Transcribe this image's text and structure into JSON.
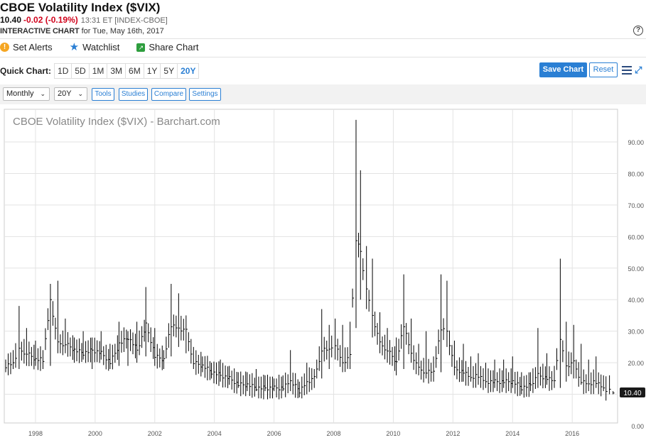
{
  "header": {
    "title": "CBOE Volatility Index ($VIX)",
    "last": "10.40",
    "change": "-0.02 (-0.19%)",
    "meta": "13:31 ET [INDEX-CBOE]",
    "chart_label": "INTERACTIVE CHART",
    "chart_date": "for Tue, May 16th, 2017",
    "help": "?"
  },
  "actions": {
    "alerts": "Set Alerts",
    "watchlist": "Watchlist",
    "share": "Share Chart"
  },
  "quick": {
    "label": "Quick Chart:",
    "timeframes": [
      "1D",
      "5D",
      "1M",
      "3M",
      "6M",
      "1Y",
      "5Y",
      "20Y"
    ],
    "active": "20Y"
  },
  "buttons": {
    "save": "Save Chart",
    "reset": "Reset"
  },
  "toolbar": {
    "interval": "Monthly",
    "period": "20Y",
    "tools": "Tools",
    "studies": "Studies",
    "compare": "Compare",
    "settings": "Settings"
  },
  "colors": {
    "accent": "#2a7fd4",
    "down": "#d0021b",
    "bars": "#000000",
    "grid": "#dddddd"
  },
  "chart_data": {
    "type": "ohlc",
    "title": "CBOE Volatility Index ($VIX) - Barchart.com",
    "interval": "monthly",
    "x_ticks": [
      "1998",
      "2000",
      "2002",
      "2004",
      "2006",
      "2008",
      "2010",
      "2012",
      "2014",
      "2016"
    ],
    "y_ticks": [
      "0.00",
      "10.00",
      "20.00",
      "30.00",
      "40.00",
      "50.00",
      "60.00",
      "70.00",
      "80.00",
      "90.00"
    ],
    "ylim": [
      0,
      95
    ],
    "xlim": [
      1997.0,
      2017.45
    ],
    "last_value_tag": "10.40",
    "series": [
      {
        "x": 1997.0,
        "high": 21,
        "low": 17,
        "close": 19
      },
      {
        "x": 1997.25,
        "high": 24,
        "low": 18,
        "close": 20
      },
      {
        "x": 1997.45,
        "high": 38,
        "low": 18,
        "close": 24
      },
      {
        "x": 1997.7,
        "high": 31,
        "low": 19,
        "close": 23
      },
      {
        "x": 1998.0,
        "high": 27,
        "low": 19,
        "close": 21
      },
      {
        "x": 1998.25,
        "high": 24,
        "low": 18,
        "close": 21
      },
      {
        "x": 1998.5,
        "high": 45,
        "low": 19,
        "close": 40
      },
      {
        "x": 1998.75,
        "high": 46,
        "low": 23,
        "close": 26
      },
      {
        "x": 1999.0,
        "high": 34,
        "low": 23,
        "close": 26
      },
      {
        "x": 1999.3,
        "high": 28,
        "low": 20,
        "close": 24
      },
      {
        "x": 1999.6,
        "high": 30,
        "low": 21,
        "close": 23
      },
      {
        "x": 1999.9,
        "high": 28,
        "low": 18,
        "close": 24
      },
      {
        "x": 2000.2,
        "high": 30,
        "low": 21,
        "close": 23
      },
      {
        "x": 2000.5,
        "high": 26,
        "low": 18,
        "close": 20
      },
      {
        "x": 2000.8,
        "high": 33,
        "low": 19,
        "close": 26
      },
      {
        "x": 2001.1,
        "high": 30,
        "low": 19,
        "close": 28
      },
      {
        "x": 2001.4,
        "high": 33,
        "low": 20,
        "close": 24
      },
      {
        "x": 2001.7,
        "high": 44,
        "low": 22,
        "close": 32
      },
      {
        "x": 2002.0,
        "high": 31,
        "low": 19,
        "close": 22
      },
      {
        "x": 2002.3,
        "high": 24,
        "low": 18,
        "close": 21
      },
      {
        "x": 2002.55,
        "high": 45,
        "low": 22,
        "close": 32
      },
      {
        "x": 2002.8,
        "high": 42,
        "low": 25,
        "close": 31
      },
      {
        "x": 2003.05,
        "high": 35,
        "low": 23,
        "close": 30
      },
      {
        "x": 2003.3,
        "high": 25,
        "low": 18,
        "close": 20
      },
      {
        "x": 2003.6,
        "high": 22,
        "low": 17,
        "close": 19
      },
      {
        "x": 2003.9,
        "high": 20,
        "low": 15,
        "close": 17
      },
      {
        "x": 2004.2,
        "high": 21,
        "low": 14,
        "close": 16
      },
      {
        "x": 2004.5,
        "high": 19,
        "low": 13,
        "close": 15
      },
      {
        "x": 2004.8,
        "high": 17,
        "low": 12,
        "close": 13
      },
      {
        "x": 2005.1,
        "high": 17,
        "low": 11,
        "close": 13
      },
      {
        "x": 2005.4,
        "high": 18,
        "low": 11,
        "close": 12
      },
      {
        "x": 2005.7,
        "high": 16,
        "low": 11,
        "close": 12
      },
      {
        "x": 2006.0,
        "high": 15,
        "low": 11,
        "close": 12
      },
      {
        "x": 2006.3,
        "high": 16,
        "low": 11,
        "close": 12
      },
      {
        "x": 2006.55,
        "high": 24,
        "low": 11,
        "close": 14
      },
      {
        "x": 2006.85,
        "high": 14,
        "low": 9,
        "close": 11
      },
      {
        "x": 2007.1,
        "high": 20,
        "low": 10,
        "close": 14
      },
      {
        "x": 2007.35,
        "high": 18,
        "low": 12,
        "close": 15
      },
      {
        "x": 2007.6,
        "high": 37,
        "low": 15,
        "close": 24
      },
      {
        "x": 2007.85,
        "high": 32,
        "low": 18,
        "close": 24
      },
      {
        "x": 2008.05,
        "high": 34,
        "low": 21,
        "close": 26
      },
      {
        "x": 2008.3,
        "high": 32,
        "low": 17,
        "close": 20
      },
      {
        "x": 2008.55,
        "high": 33,
        "low": 18,
        "close": 22
      },
      {
        "x": 2008.75,
        "high": 97,
        "low": 31,
        "close": 59
      },
      {
        "x": 2008.9,
        "high": 81,
        "low": 40,
        "close": 55
      },
      {
        "x": 2009.1,
        "high": 57,
        "low": 37,
        "close": 44
      },
      {
        "x": 2009.3,
        "high": 53,
        "low": 28,
        "close": 35
      },
      {
        "x": 2009.55,
        "high": 36,
        "low": 23,
        "close": 26
      },
      {
        "x": 2009.8,
        "high": 31,
        "low": 20,
        "close": 24
      },
      {
        "x": 2010.1,
        "high": 28,
        "low": 16,
        "close": 20
      },
      {
        "x": 2010.35,
        "high": 48,
        "low": 18,
        "close": 32
      },
      {
        "x": 2010.6,
        "high": 34,
        "low": 20,
        "close": 23
      },
      {
        "x": 2010.85,
        "high": 26,
        "low": 16,
        "close": 18
      },
      {
        "x": 2011.1,
        "high": 30,
        "low": 15,
        "close": 17
      },
      {
        "x": 2011.35,
        "high": 22,
        "low": 14,
        "close": 17
      },
      {
        "x": 2011.6,
        "high": 48,
        "low": 17,
        "close": 31
      },
      {
        "x": 2011.8,
        "high": 46,
        "low": 25,
        "close": 30
      },
      {
        "x": 2012.05,
        "high": 27,
        "low": 16,
        "close": 18
      },
      {
        "x": 2012.35,
        "high": 26,
        "low": 14,
        "close": 17
      },
      {
        "x": 2012.6,
        "high": 22,
        "low": 14,
        "close": 15
      },
      {
        "x": 2012.85,
        "high": 23,
        "low": 13,
        "close": 16
      },
      {
        "x": 2013.1,
        "high": 20,
        "low": 12,
        "close": 14
      },
      {
        "x": 2013.4,
        "high": 21,
        "low": 12,
        "close": 14
      },
      {
        "x": 2013.7,
        "high": 21,
        "low": 12,
        "close": 14
      },
      {
        "x": 2014.0,
        "high": 22,
        "low": 12,
        "close": 14
      },
      {
        "x": 2014.3,
        "high": 17,
        "low": 10,
        "close": 12
      },
      {
        "x": 2014.6,
        "high": 17,
        "low": 11,
        "close": 13
      },
      {
        "x": 2014.85,
        "high": 31,
        "low": 12,
        "close": 16
      },
      {
        "x": 2015.15,
        "high": 23,
        "low": 13,
        "close": 15
      },
      {
        "x": 2015.4,
        "high": 19,
        "low": 12,
        "close": 14
      },
      {
        "x": 2015.6,
        "high": 53,
        "low": 12,
        "close": 28
      },
      {
        "x": 2015.8,
        "high": 33,
        "low": 14,
        "close": 19
      },
      {
        "x": 2016.05,
        "high": 32,
        "low": 15,
        "close": 20
      },
      {
        "x": 2016.3,
        "high": 26,
        "low": 13,
        "close": 14
      },
      {
        "x": 2016.55,
        "high": 21,
        "low": 11,
        "close": 13
      },
      {
        "x": 2016.8,
        "high": 22,
        "low": 12,
        "close": 14
      },
      {
        "x": 2017.05,
        "high": 16,
        "low": 11,
        "close": 12
      },
      {
        "x": 2017.25,
        "high": 16,
        "low": 10,
        "close": 11
      },
      {
        "x": 2017.37,
        "high": 11,
        "low": 10,
        "close": 10.4
      }
    ]
  }
}
